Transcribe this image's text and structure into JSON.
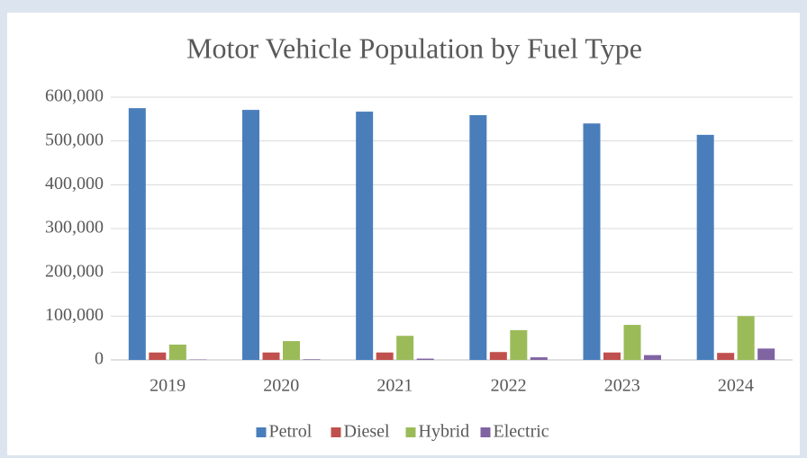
{
  "chart_data": {
    "type": "bar",
    "title": "Motor Vehicle Population by Fuel Type",
    "categories": [
      "2019",
      "2020",
      "2021",
      "2022",
      "2023",
      "2024"
    ],
    "series": [
      {
        "name": "Petrol",
        "color": "#4a7ebb",
        "values": [
          575000,
          571000,
          567000,
          559000,
          540000,
          514000
        ]
      },
      {
        "name": "Diesel",
        "color": "#c0504d",
        "values": [
          17000,
          17000,
          17000,
          18000,
          17000,
          16000
        ]
      },
      {
        "name": "Hybrid",
        "color": "#9bbb59",
        "values": [
          35000,
          43000,
          55000,
          68000,
          80000,
          100000
        ]
      },
      {
        "name": "Electric",
        "color": "#8064a2",
        "values": [
          1000,
          1500,
          3000,
          6000,
          11000,
          26000
        ]
      }
    ],
    "ylim": [
      0,
      600000
    ],
    "yticks": [
      0,
      {
        "value": 100000,
        "label": "100,000"
      },
      {
        "value": 200000,
        "label": "200,000"
      },
      {
        "value": 300000,
        "label": "300,000"
      },
      {
        "value": 400000,
        "label": "400,000"
      },
      {
        "value": 500000,
        "label": "500,000"
      },
      {
        "value": 600000,
        "label": "600,000"
      }
    ],
    "grid": true,
    "legend": "bottom"
  }
}
